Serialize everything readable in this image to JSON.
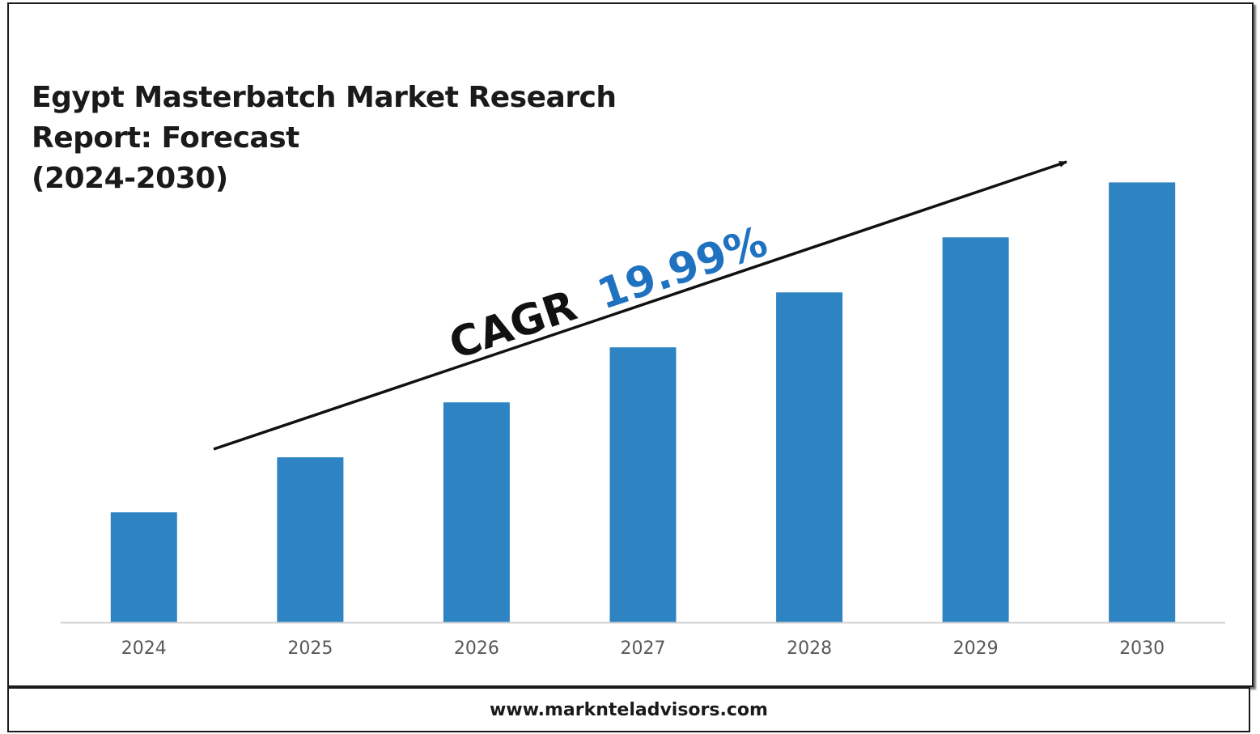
{
  "title_lines": [
    "Egypt Masterbatch Market Research",
    "Report: Forecast",
    "(2024-2030)"
  ],
  "cagr": {
    "label": "CAGR",
    "value": "19.99%",
    "value_color": "#1f72c0"
  },
  "footer": {
    "url": "www.marknteladvisors.com"
  },
  "colors": {
    "bar": "#2e83c3",
    "axis": "#d0d0d0",
    "tick_label": "#595959",
    "arrow": "#111111"
  },
  "chart_data": {
    "type": "bar",
    "categories": [
      "2024",
      "2025",
      "2026",
      "2027",
      "2028",
      "2029",
      "2030"
    ],
    "values": [
      1.0,
      1.5,
      2.0,
      2.5,
      3.0,
      3.5,
      4.0
    ],
    "ylim": [
      0,
      4.4
    ],
    "xlabel": "",
    "ylabel": "",
    "grid": false,
    "legend": "none"
  }
}
